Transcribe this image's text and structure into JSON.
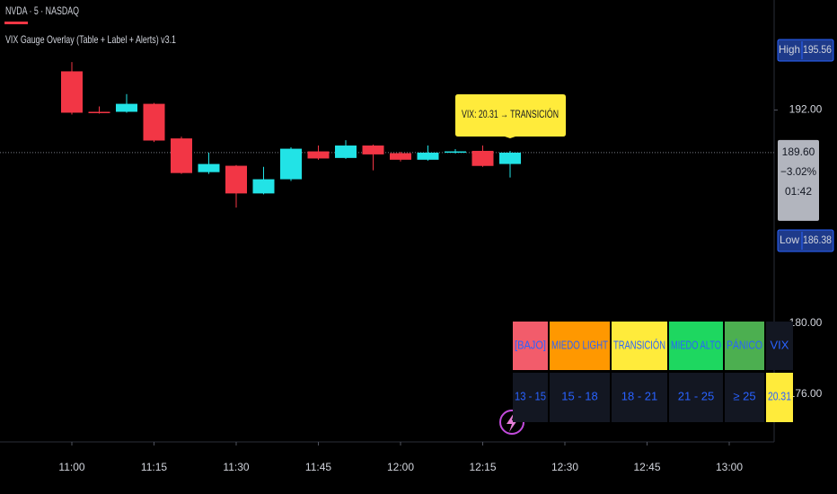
{
  "chart_data": {
    "type": "candlestick",
    "symbol": "NVDA · 5 · NASDAQ",
    "indicator": "VIX Gauge Overlay (Table + Label + Alerts) v3.1",
    "categories": [
      "11:00",
      null,
      null,
      "11:15",
      null,
      null,
      "11:30",
      null,
      null,
      "11:45",
      null,
      null,
      "12:00",
      null,
      null,
      "12:15",
      null,
      null,
      "12:30",
      null,
      null,
      "12:45",
      null,
      null,
      "13:00",
      null
    ],
    "series": {
      "open": [
        194.18,
        191.9,
        191.9,
        192.35,
        190.4,
        188.5,
        188.86,
        187.3,
        188.1,
        189.67,
        189.3,
        190.0,
        189.57,
        189.2,
        189.6,
        189.7,
        188.96,
        null,
        null,
        null,
        null,
        null,
        null,
        null,
        null,
        null
      ],
      "high": [
        194.7,
        192.2,
        192.9,
        192.4,
        190.5,
        189.6,
        188.9,
        188.8,
        189.9,
        190.0,
        190.3,
        190.05,
        189.65,
        190.0,
        189.8,
        190.0,
        189.7,
        null,
        null,
        null,
        null,
        null,
        null,
        null,
        null,
        null
      ],
      "low": [
        191.75,
        191.8,
        191.85,
        190.2,
        188.4,
        188.4,
        186.5,
        187.25,
        188.0,
        189.2,
        189.25,
        188.6,
        189.1,
        189.15,
        189.55,
        188.8,
        188.2,
        null,
        null,
        null,
        null,
        null,
        null,
        null,
        null,
        null
      ],
      "close": [
        191.85,
        191.85,
        192.35,
        190.28,
        188.45,
        188.96,
        187.3,
        188.1,
        189.82,
        189.27,
        190.0,
        189.5,
        189.2,
        189.6,
        189.67,
        188.85,
        189.6,
        null,
        null,
        null,
        null,
        null,
        null,
        null,
        null,
        null
      ]
    },
    "up_color": "#22e3e6",
    "down_color": "#f23645",
    "ylim": [
      173.3,
      198.2
    ],
    "yticks": [
      {
        "value": 192,
        "label": "192.00"
      },
      {
        "value": 180,
        "label": "180.00"
      },
      {
        "value": 176,
        "label": "176.00"
      }
    ],
    "last_price": {
      "value": 189.6,
      "label": "189.60",
      "change": "−3.02%",
      "countdown": "01:42"
    },
    "high": {
      "name": "High",
      "value": 195.56,
      "label": "195.56"
    },
    "low": {
      "name": "Low",
      "value": 186.38,
      "label": "186.38"
    },
    "annotation": "VIX: 20.31 → TRANSICIÓN",
    "table": {
      "header": [
        "[BAJO]",
        "MIEDO LIGHT",
        "TRANSICIÓN",
        "MIEDO ALTO",
        "PÁNICO",
        "VIX"
      ],
      "header_colors": [
        "#f25c6b",
        "#ff9800",
        "#ffeb3b",
        "#1ed760",
        "#4caf50",
        "#131722"
      ],
      "rows": [
        [
          "13 - 15",
          "15 - 18",
          "18 - 21",
          "21 - 25",
          "≥ 25",
          "20.31"
        ]
      ],
      "row_colors": [
        "#131722",
        "#131722",
        "#131722",
        "#131722",
        "#131722",
        "#ffeb3b"
      ]
    }
  }
}
